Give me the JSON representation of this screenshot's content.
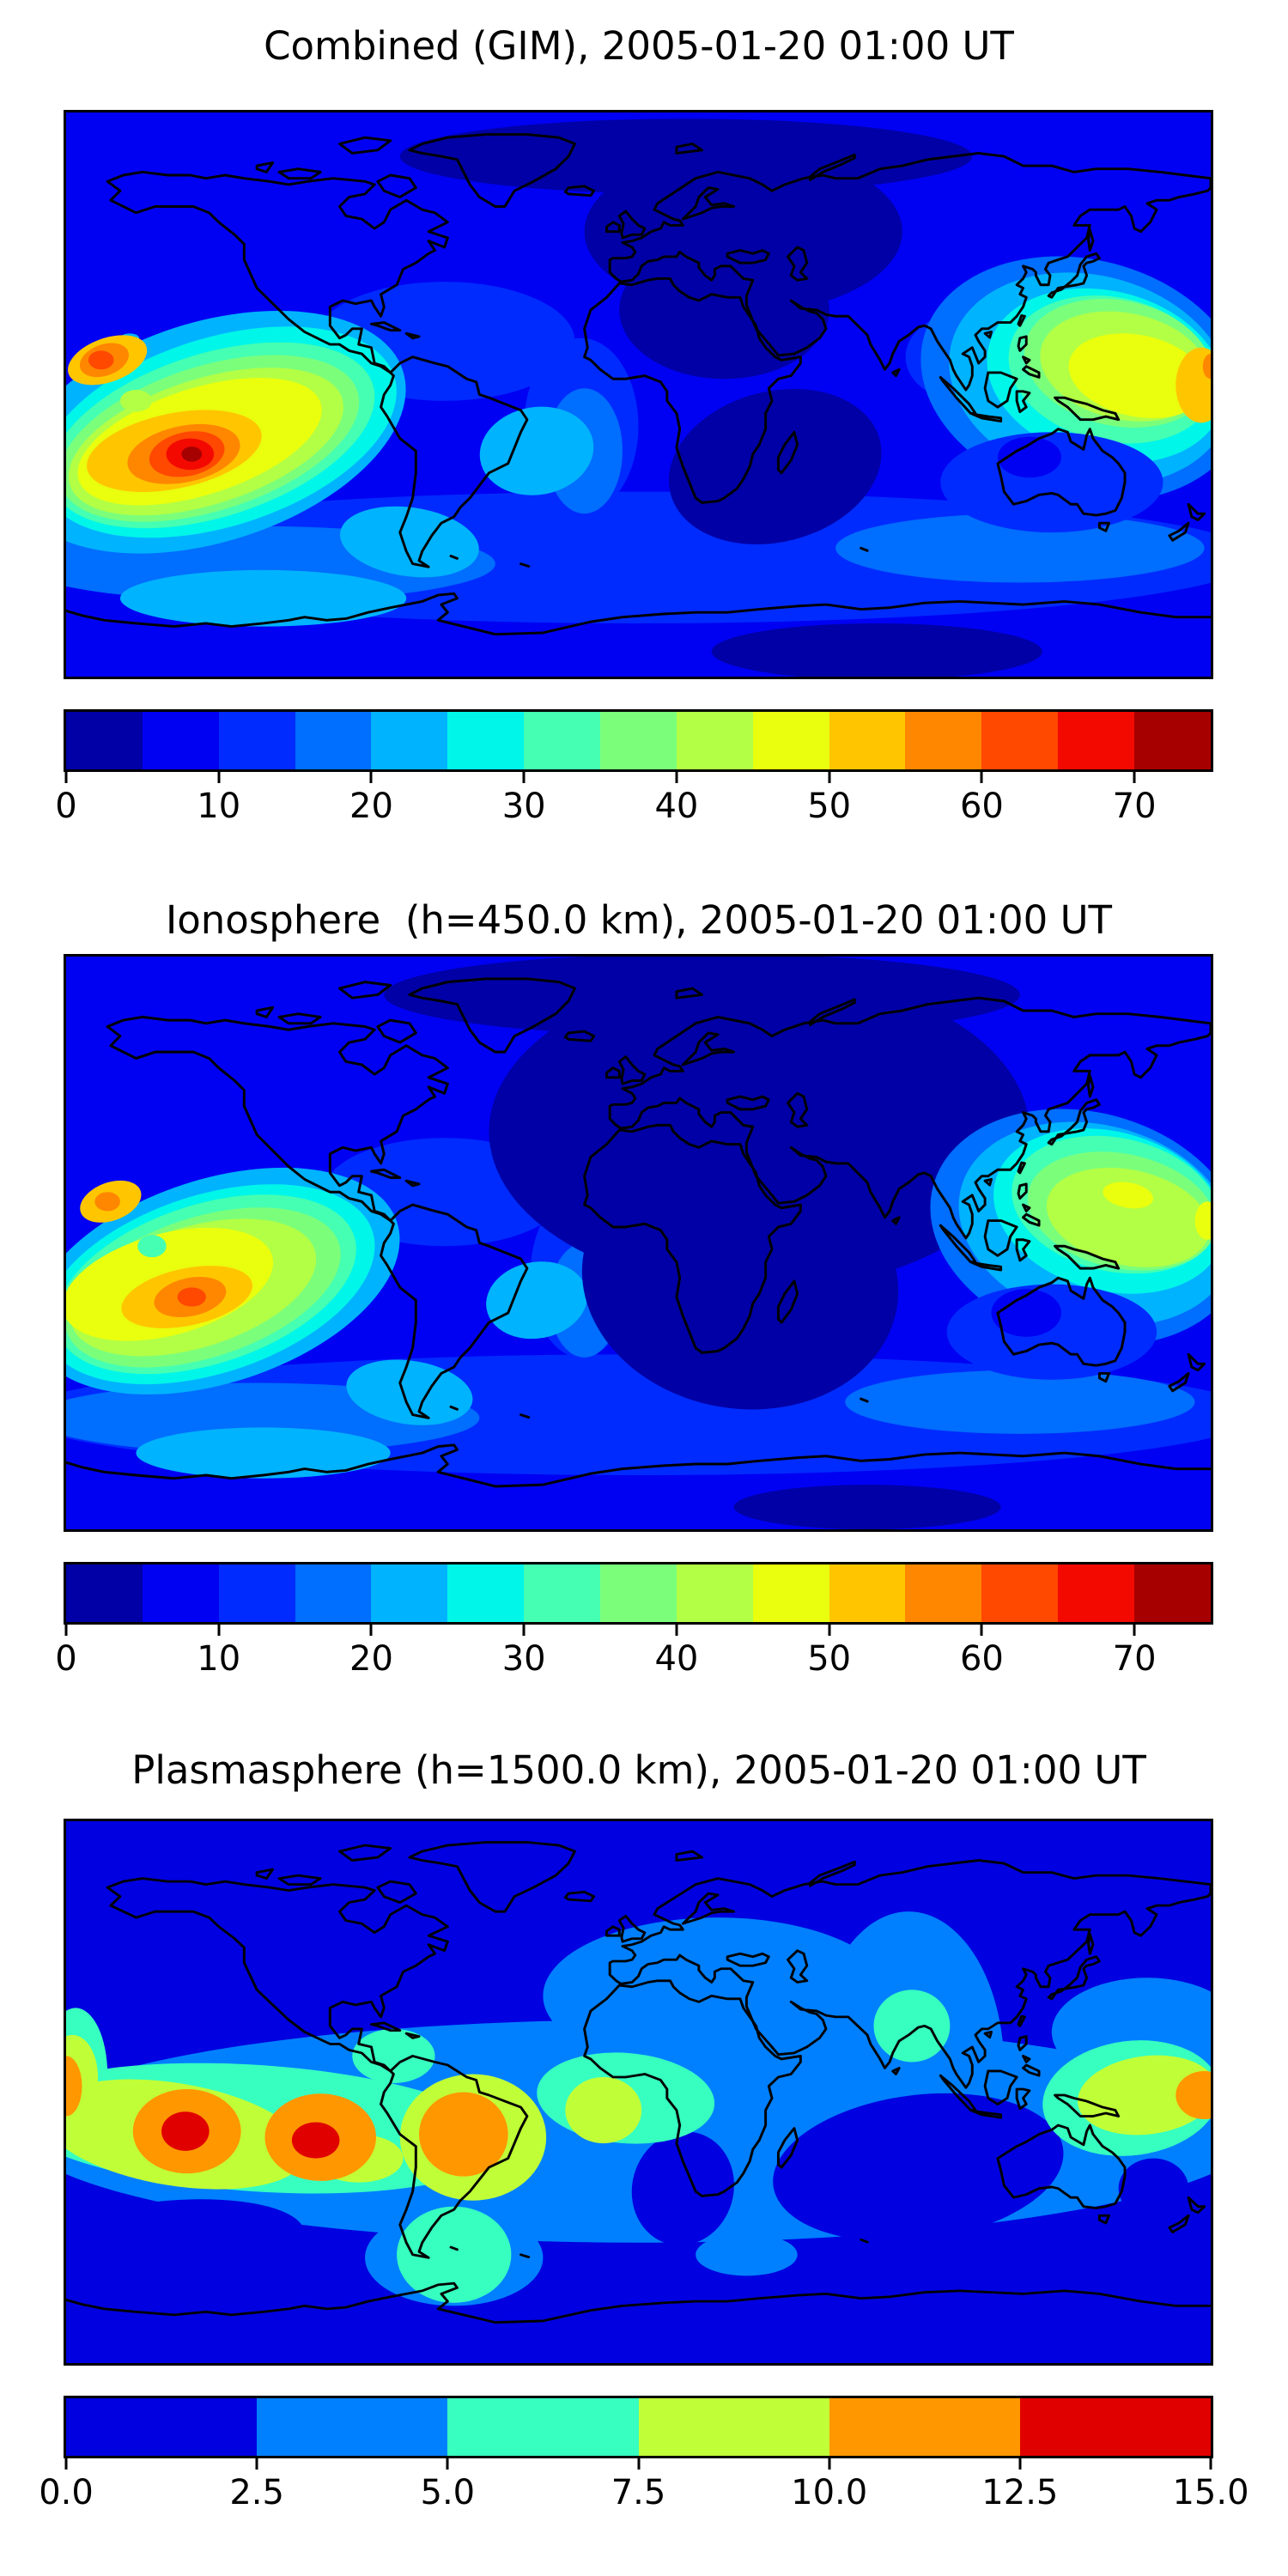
{
  "palettes": {
    "jet15": [
      "#0000A6",
      "#0000F3",
      "#002BFF",
      "#006EFF",
      "#00B3FF",
      "#00F6E9",
      "#45FFB2",
      "#7BFF7B",
      "#B2FF45",
      "#E9FF0E",
      "#FFC600",
      "#FF8700",
      "#FF4800",
      "#F30900",
      "#A60000"
    ],
    "jet6": [
      "#0000E0",
      "#0080FF",
      "#37FFC0",
      "#C0FF37",
      "#FF9700",
      "#E00000"
    ]
  },
  "chart_data": [
    {
      "type": "heatmap",
      "subtype": "filled-contour-world-map",
      "title": "Combined (GIM), 2005-01-20 01:00 UT",
      "projection": "equirectangular",
      "lon_range": [
        -180,
        180
      ],
      "lat_range": [
        -90,
        90
      ],
      "grid": false,
      "levels": [
        0,
        5,
        10,
        15,
        20,
        25,
        30,
        35,
        40,
        45,
        50,
        55,
        60,
        65,
        70,
        75
      ],
      "palette": "jet15",
      "colorbar_orientation": "horizontal",
      "tick_values": [
        0,
        10,
        20,
        30,
        40,
        50,
        60,
        70
      ],
      "tick_labels": [
        "0",
        "10",
        "20",
        "30",
        "40",
        "50",
        "60",
        "70"
      ],
      "features": [
        {
          "label": "primary peak, south crest of equatorial anomaly (South Pacific)",
          "lon": -141,
          "lat": -18,
          "value_range": [
            70,
            75
          ]
        },
        {
          "label": "secondary peak, north crest",
          "lon": -168,
          "lat": 11,
          "value_range": [
            60,
            65
          ]
        },
        {
          "label": "local dip between crests",
          "lon": -158,
          "lat": -2,
          "value_range": [
            40,
            45
          ]
        },
        {
          "label": "West Pacific maximum near dateline",
          "lon": 177,
          "lat": 3,
          "value_range": [
            50,
            55
          ]
        },
        {
          "label": "broad night-side minimum over Europe/Africa/Middle East",
          "lon": 30,
          "lat": 28,
          "value_range": [
            0,
            5
          ]
        },
        {
          "label": "minimum south of Africa / Indian Ocean",
          "lon": 43,
          "lat": -23,
          "value_range": [
            0,
            5
          ]
        }
      ]
    },
    {
      "type": "heatmap",
      "subtype": "filled-contour-world-map",
      "title": "Ionosphere  (h=450.0 km), 2005-01-20 01:00 UT",
      "projection": "equirectangular",
      "lon_range": [
        -180,
        180
      ],
      "lat_range": [
        -90,
        90
      ],
      "grid": false,
      "levels": [
        0,
        5,
        10,
        15,
        20,
        25,
        30,
        35,
        40,
        45,
        50,
        55,
        60,
        65,
        70,
        75
      ],
      "palette": "jet15",
      "colorbar_orientation": "horizontal",
      "tick_values": [
        0,
        10,
        20,
        30,
        40,
        50,
        60,
        70
      ],
      "tick_labels": [
        "0",
        "10",
        "20",
        "30",
        "40",
        "50",
        "60",
        "70"
      ],
      "features": [
        {
          "label": "primary peak, south crest (South Pacific)",
          "lon": -141,
          "lat": -17,
          "value_range": [
            60,
            65
          ]
        },
        {
          "label": "secondary peak, north crest",
          "lon": -166,
          "lat": 13,
          "value_range": [
            50,
            60
          ]
        },
        {
          "label": "local dip between crests",
          "lon": -153,
          "lat": -1,
          "value_range": [
            30,
            35
          ]
        },
        {
          "label": "West Pacific maximum",
          "lon": 155,
          "lat": 8,
          "value_range": [
            45,
            50
          ]
        },
        {
          "label": "very broad night-side minimum over Europe/Africa/Asia",
          "lon": 35,
          "lat": 30,
          "value_range": [
            0,
            5
          ]
        }
      ]
    },
    {
      "type": "heatmap",
      "subtype": "filled-contour-world-map",
      "title": "Plasmasphere (h=1500.0 km), 2005-01-20 01:00 UT",
      "projection": "equirectangular",
      "lon_range": [
        -180,
        180
      ],
      "lat_range": [
        -90,
        90
      ],
      "grid": false,
      "levels": [
        0,
        2.5,
        5,
        7.5,
        10,
        12.5,
        15
      ],
      "palette": "jet6",
      "colorbar_orientation": "horizontal",
      "tick_values": [
        0,
        2.5,
        5,
        7.5,
        10,
        12.5,
        15
      ],
      "tick_labels": [
        "0.0",
        "2.5",
        "5.0",
        "7.5",
        "10.0",
        "12.5",
        "15.0"
      ],
      "features": [
        {
          "label": "equatorial belt of enhanced density spanning all longitudes",
          "lon": null,
          "lat": -12,
          "value_range": [
            5,
            10
          ]
        },
        {
          "label": "peak 1 (South Pacific)",
          "lon": -143,
          "lat": -13,
          "value_range": [
            12.5,
            15
          ]
        },
        {
          "label": "peak 2 (East Pacific)",
          "lon": -101,
          "lat": -16,
          "value_range": [
            12.5,
            15
          ]
        },
        {
          "label": "South America maximum",
          "lon": -55,
          "lat": -14,
          "value_range": [
            10,
            12.5
          ]
        },
        {
          "label": "West Pacific maximum near dateline",
          "lon": 175,
          "lat": -1,
          "value_range": [
            10,
            12.5
          ]
        },
        {
          "label": "Atlantic / West Africa high",
          "lon": -11,
          "lat": -6,
          "value_range": [
            7.5,
            10
          ]
        },
        {
          "label": "enhancement over India",
          "lon": 86,
          "lat": 22,
          "value_range": [
            5,
            7.5
          ]
        },
        {
          "label": "polar minima poleward of ±50° latitude",
          "lon": null,
          "lat": null,
          "value_range": [
            0,
            2.5
          ]
        }
      ]
    }
  ]
}
